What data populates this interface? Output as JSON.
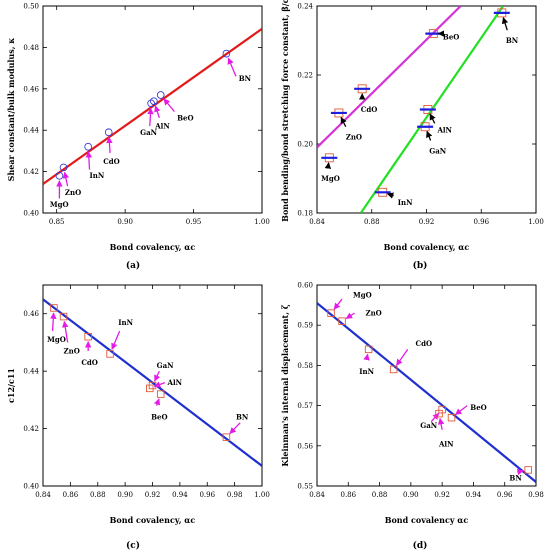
{
  "chart_data": [
    {
      "id": "a",
      "caption": "(a)",
      "type": "scatter",
      "xlabel": "Bond covalency, αc",
      "ylabel": "Shear constant/bulk modulus, κ",
      "xlim": [
        0.84,
        1.0
      ],
      "ylim": [
        0.4,
        0.5
      ],
      "xticks": [
        {
          "v": 0.85,
          "l": "0.85"
        },
        {
          "v": 0.9,
          "l": "0.90"
        },
        {
          "v": 0.95,
          "l": "0.95"
        },
        {
          "v": 1.0,
          "l": "1.00"
        }
      ],
      "yticks": [
        {
          "v": 0.4,
          "l": "0.40"
        },
        {
          "v": 0.42,
          "l": "0.42"
        },
        {
          "v": 0.44,
          "l": "0.44"
        },
        {
          "v": 0.46,
          "l": "0.46"
        },
        {
          "v": 0.48,
          "l": "0.48"
        },
        {
          "v": 0.5,
          "l": "0.50"
        }
      ],
      "marker": "circle",
      "marker_color": "#3b3bd6",
      "fit_lines": [
        {
          "color": "#e31a1a",
          "points": [
            [
              0.84,
              0.414
            ],
            [
              1.0,
              0.489
            ]
          ]
        }
      ],
      "points": [
        {
          "label": "MgO",
          "x": 0.852,
          "y": 0.418,
          "lx": 0.852,
          "ly": 0.407,
          "tx": 0.845,
          "ty": 0.404
        },
        {
          "label": "ZnO",
          "x": 0.855,
          "y": 0.422,
          "lx": 0.858,
          "ly": 0.413,
          "tx": 0.856,
          "ty": 0.41
        },
        {
          "label": "InN",
          "x": 0.873,
          "y": 0.432,
          "lx": 0.874,
          "ly": 0.421,
          "tx": 0.874,
          "ty": 0.418
        },
        {
          "label": "CdO",
          "x": 0.888,
          "y": 0.439,
          "lx": 0.889,
          "ly": 0.429,
          "tx": 0.884,
          "ty": 0.425
        },
        {
          "label": "GaN",
          "x": 0.919,
          "y": 0.453,
          "lx": 0.918,
          "ly": 0.442,
          "tx": 0.911,
          "ty": 0.439
        },
        {
          "label": "AlN",
          "x": 0.921,
          "y": 0.454,
          "lx": 0.925,
          "ly": 0.446,
          "tx": 0.922,
          "ty": 0.442
        },
        {
          "label": "BeO",
          "x": 0.926,
          "y": 0.457,
          "lx": 0.936,
          "ly": 0.449,
          "tx": 0.938,
          "ty": 0.446
        },
        {
          "label": "BN",
          "x": 0.974,
          "y": 0.477,
          "lx": 0.981,
          "ly": 0.466,
          "tx": 0.983,
          "ty": 0.465
        }
      ]
    },
    {
      "id": "b",
      "caption": "(b)",
      "type": "scatter",
      "xlabel": "Bond covalency, αc",
      "ylabel": "Bond bending/bond stretching force constant, β/α",
      "xlim": [
        0.84,
        1.0
      ],
      "ylim": [
        0.18,
        0.24
      ],
      "xticks": [
        {
          "v": 0.84,
          "l": "0.84"
        },
        {
          "v": 0.88,
          "l": "0.88"
        },
        {
          "v": 0.92,
          "l": "0.92"
        },
        {
          "v": 0.96,
          "l": "0.96"
        },
        {
          "v": 1.0,
          "l": "1.00"
        }
      ],
      "yticks": [
        {
          "v": 0.18,
          "l": "0.18"
        },
        {
          "v": 0.2,
          "l": "0.20"
        },
        {
          "v": 0.22,
          "l": "0.22"
        },
        {
          "v": 0.24,
          "l": "0.24"
        }
      ],
      "marker": "square-bar",
      "marker_color": "#e05a3a",
      "bar_color": "#1d1de0",
      "fit_lines": [
        {
          "color": "#d633d6",
          "points": [
            [
              0.84,
              0.199
            ],
            [
              0.945,
              0.24
            ]
          ]
        },
        {
          "color": "#22e022",
          "points": [
            [
              0.872,
              0.18
            ],
            [
              0.976,
              0.24
            ]
          ]
        }
      ],
      "points": [
        {
          "label": "MgO",
          "x": 0.849,
          "y": 0.196,
          "lx": 0.848,
          "ly": 0.193,
          "tx": 0.843,
          "ty": 0.19
        },
        {
          "label": "ZnO",
          "x": 0.856,
          "y": 0.209,
          "lx": 0.861,
          "ly": 0.205,
          "tx": 0.861,
          "ty": 0.202
        },
        {
          "label": "CdO",
          "x": 0.873,
          "y": 0.216,
          "lx": 0.873,
          "ly": 0.213,
          "tx": 0.872,
          "ty": 0.21
        },
        {
          "label": "InN",
          "x": 0.888,
          "y": 0.186,
          "lx": 0.896,
          "ly": 0.185,
          "tx": 0.899,
          "ty": 0.183
        },
        {
          "label": "BeO",
          "x": 0.925,
          "y": 0.232,
          "lx": 0.93,
          "ly": 0.232,
          "tx": 0.932,
          "ty": 0.231
        },
        {
          "label": "AlN",
          "x": 0.921,
          "y": 0.21,
          "lx": 0.926,
          "ly": 0.206,
          "tx": 0.928,
          "ty": 0.204
        },
        {
          "label": "GaN",
          "x": 0.919,
          "y": 0.205,
          "lx": 0.923,
          "ly": 0.201,
          "tx": 0.922,
          "ty": 0.198
        },
        {
          "label": "BN",
          "x": 0.975,
          "y": 0.238,
          "lx": 0.979,
          "ly": 0.233,
          "tx": 0.978,
          "ty": 0.23
        }
      ]
    },
    {
      "id": "c",
      "caption": "(c)",
      "type": "scatter",
      "xlabel": "Bond covalency, αc",
      "ylabel": "c12/c11",
      "xlim": [
        0.84,
        1.0
      ],
      "ylim": [
        0.4,
        0.47
      ],
      "xticks": [
        {
          "v": 0.84,
          "l": "0.84"
        },
        {
          "v": 0.86,
          "l": "0.86"
        },
        {
          "v": 0.88,
          "l": "0.88"
        },
        {
          "v": 0.9,
          "l": "0.90"
        },
        {
          "v": 0.92,
          "l": "0.92"
        },
        {
          "v": 0.94,
          "l": "0.94"
        },
        {
          "v": 0.96,
          "l": "0.96"
        },
        {
          "v": 0.98,
          "l": "0.98"
        },
        {
          "v": 1.0,
          "l": "1.00"
        }
      ],
      "yticks": [
        {
          "v": 0.4,
          "l": "0.40"
        },
        {
          "v": 0.42,
          "l": "0.42"
        },
        {
          "v": 0.44,
          "l": "0.44"
        },
        {
          "v": 0.46,
          "l": "0.46"
        }
      ],
      "marker": "square",
      "marker_color": "#e05a3a",
      "fit_lines": [
        {
          "color": "#1f2fd0",
          "points": [
            [
              0.84,
              0.465
            ],
            [
              1.0,
              0.407
            ]
          ]
        }
      ],
      "points": [
        {
          "label": "MgO",
          "x": 0.848,
          "y": 0.462,
          "lx": 0.847,
          "ly": 0.454,
          "tx": 0.843,
          "ty": 0.451
        },
        {
          "label": "ZnO",
          "x": 0.855,
          "y": 0.459,
          "lx": 0.858,
          "ly": 0.45,
          "tx": 0.855,
          "ty": 0.447
        },
        {
          "label": "CdO",
          "x": 0.873,
          "y": 0.452,
          "lx": 0.873,
          "ly": 0.447,
          "tx": 0.868,
          "ty": 0.443
        },
        {
          "label": "InN",
          "x": 0.889,
          "y": 0.446,
          "lx": 0.896,
          "ly": 0.454,
          "tx": 0.895,
          "ty": 0.457
        },
        {
          "label": "GaN",
          "x": 0.92,
          "y": 0.435,
          "lx": 0.925,
          "ly": 0.44,
          "tx": 0.923,
          "ty": 0.442
        },
        {
          "label": "AlN",
          "x": 0.918,
          "y": 0.434,
          "lx": 0.929,
          "ly": 0.436,
          "tx": 0.931,
          "ty": 0.436
        },
        {
          "label": "BeO",
          "x": 0.926,
          "y": 0.432,
          "lx": 0.923,
          "ly": 0.428,
          "tx": 0.919,
          "ty": 0.424
        },
        {
          "label": "BN",
          "x": 0.974,
          "y": 0.417,
          "lx": 0.984,
          "ly": 0.422,
          "tx": 0.981,
          "ty": 0.424
        }
      ]
    },
    {
      "id": "d",
      "caption": "(d)",
      "type": "scatter",
      "xlabel": "Bond covalency αc",
      "ylabel": "Kleinman's internal displacement, ζ",
      "xlim": [
        0.84,
        0.98
      ],
      "ylim": [
        0.55,
        0.6
      ],
      "xticks": [
        {
          "v": 0.84,
          "l": "0.84"
        },
        {
          "v": 0.86,
          "l": "0.86"
        },
        {
          "v": 0.88,
          "l": "0.88"
        },
        {
          "v": 0.9,
          "l": "0.90"
        },
        {
          "v": 0.92,
          "l": "0.92"
        },
        {
          "v": 0.94,
          "l": "0.94"
        },
        {
          "v": 0.96,
          "l": "0.96"
        },
        {
          "v": 0.98,
          "l": "0.98"
        }
      ],
      "yticks": [
        {
          "v": 0.55,
          "l": "0.55"
        },
        {
          "v": 0.56,
          "l": "0.56"
        },
        {
          "v": 0.57,
          "l": "0.57"
        },
        {
          "v": 0.58,
          "l": "0.58"
        },
        {
          "v": 0.59,
          "l": "0.59"
        },
        {
          "v": 0.6,
          "l": "0.60"
        }
      ],
      "marker": "square",
      "marker_color": "#e05a3a",
      "fit_lines": [
        {
          "color": "#1f2fd0",
          "points": [
            [
              0.84,
              0.5955
            ],
            [
              0.98,
              0.551
            ]
          ]
        }
      ],
      "points": [
        {
          "label": "MgO",
          "x": 0.849,
          "y": 0.593,
          "lx": 0.856,
          "ly": 0.5965,
          "tx": 0.863,
          "ty": 0.5975
        },
        {
          "label": "ZnO",
          "x": 0.856,
          "y": 0.591,
          "lx": 0.864,
          "ly": 0.593,
          "tx": 0.871,
          "ty": 0.593
        },
        {
          "label": "InN",
          "x": 0.873,
          "y": 0.584,
          "lx": 0.872,
          "ly": 0.582,
          "tx": 0.867,
          "ty": 0.5785
        },
        {
          "label": "CdO",
          "x": 0.889,
          "y": 0.579,
          "lx": 0.898,
          "ly": 0.584,
          "tx": 0.903,
          "ty": 0.5855
        },
        {
          "label": "BeO",
          "x": 0.926,
          "y": 0.567,
          "lx": 0.936,
          "ly": 0.57,
          "tx": 0.938,
          "ty": 0.5695
        },
        {
          "label": "GaN",
          "x": 0.92,
          "y": 0.569,
          "lx": 0.913,
          "ly": 0.566,
          "tx": 0.906,
          "ty": 0.565
        },
        {
          "label": "AlN",
          "x": 0.918,
          "y": 0.568,
          "lx": 0.92,
          "ly": 0.564,
          "tx": 0.918,
          "ty": 0.5605
        },
        {
          "label": "BN",
          "x": 0.975,
          "y": 0.554,
          "lx": 0.968,
          "ly": 0.5535,
          "tx": 0.963,
          "ty": 0.552
        }
      ]
    }
  ]
}
